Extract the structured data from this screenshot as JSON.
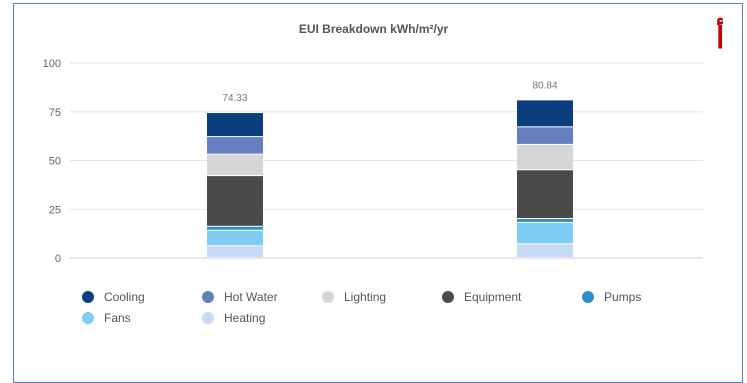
{
  "chart_data": {
    "type": "bar",
    "stacked": true,
    "title": "EUI Breakdown kWh/m²/yr",
    "xlabel": "",
    "ylabel": "",
    "ylim": [
      0,
      100
    ],
    "yticks": [
      "0",
      "25",
      "50",
      "75",
      "100"
    ],
    "grid": true,
    "legend_position": "bottom",
    "totals": [
      "74.33",
      "80.84"
    ],
    "series": [
      {
        "name": "Heating",
        "color": "#c6d9f5",
        "values": [
          6,
          7
        ]
      },
      {
        "name": "Fans",
        "color": "#7fcdf5",
        "values": [
          8,
          11
        ]
      },
      {
        "name": "Pumps",
        "color": "#2e8fcc",
        "values": [
          2,
          2
        ]
      },
      {
        "name": "Equipment",
        "color": "#4a4a4a",
        "values": [
          26,
          25
        ]
      },
      {
        "name": "Lighting",
        "color": "#d6d6d6",
        "values": [
          11,
          13
        ]
      },
      {
        "name": "Hot Water",
        "color": "#6680bf",
        "values": [
          9,
          9
        ]
      },
      {
        "name": "Cooling",
        "color": "#0b3e7e",
        "values": [
          12.33,
          13.84
        ]
      }
    ]
  },
  "legend": [
    {
      "label": "Cooling",
      "color": "#0b3e7e"
    },
    {
      "label": "Hot Water",
      "color": "#6680bf"
    },
    {
      "label": "Lighting",
      "color": "#d6d6d6"
    },
    {
      "label": "Equipment",
      "color": "#4a4a4a"
    },
    {
      "label": "Pumps",
      "color": "#2e8fcc"
    },
    {
      "label": "Fans",
      "color": "#7fcdf5"
    },
    {
      "label": "Heating",
      "color": "#c6d9f5"
    }
  ],
  "corner_mark": "أ"
}
